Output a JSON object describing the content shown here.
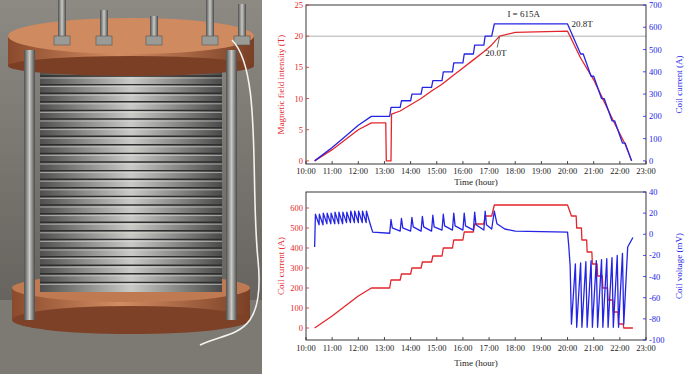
{
  "chart_data": [
    {
      "type": "line",
      "xlabel": "Time (hour)",
      "ylabel": "Magnetic field intensity (T)",
      "y2label": "Coil current (A)",
      "xlim": [
        10,
        23
      ],
      "xticks": [
        {
          "value": 10,
          "label": "10:00"
        },
        {
          "value": 11,
          "label": "11:00"
        },
        {
          "value": 12,
          "label": "12:00"
        },
        {
          "value": 13,
          "label": "13:00"
        },
        {
          "value": 14,
          "label": "14:00"
        },
        {
          "value": 15,
          "label": "15:00"
        },
        {
          "value": 16,
          "label": "16:00"
        },
        {
          "value": 17,
          "label": "17:00"
        },
        {
          "value": 18,
          "label": "18:00"
        },
        {
          "value": 19,
          "label": "19:00"
        },
        {
          "value": 20,
          "label": "20:00"
        },
        {
          "value": 21,
          "label": "21:00"
        },
        {
          "value": 22,
          "label": "22:00"
        },
        {
          "value": 23,
          "label": "23:00"
        }
      ],
      "ylim": [
        -0.5,
        25
      ],
      "yticks": [
        0,
        5,
        10,
        15,
        20,
        25
      ],
      "y2lim": [
        -14,
        700
      ],
      "y2ticks": [
        0,
        100,
        200,
        300,
        400,
        500,
        600,
        700
      ],
      "grid": false,
      "reference_lines": [
        {
          "y": 20
        }
      ],
      "annotations": [
        {
          "text": "I = 615A",
          "x": 17.7,
          "y": 23.0
        },
        {
          "text": "20.8T",
          "x": 20.15,
          "y": 21.4
        },
        {
          "text": "20.0T",
          "x": 16.85,
          "y": 16.9,
          "arrow_to": [
            17.4,
            19.9
          ]
        }
      ],
      "series": [
        {
          "color": "#e3262c",
          "x": [
            10.33,
            11,
            11.5,
            12,
            12.5,
            13.05,
            13.07,
            13.25,
            13.27,
            13.6,
            14,
            14.4,
            14.8,
            15.2,
            15.6,
            16,
            16.4,
            16.8,
            17.1,
            17.4,
            18,
            20,
            20.5,
            21,
            21.4,
            21.8,
            22.2,
            22.45
          ],
          "values": [
            0,
            1.8,
            3.4,
            5,
            6.1,
            6.1,
            0,
            0,
            7.5,
            8,
            9,
            10,
            11.2,
            12.3,
            13.6,
            14.9,
            16.2,
            17.5,
            18.6,
            20.0,
            20.6,
            20.8,
            16.5,
            13,
            9.5,
            6,
            2.7,
            0
          ]
        },
        {
          "color": "#2424e4",
          "axis": "y2",
          "x": [
            10.33,
            11,
            11.5,
            12,
            12.5,
            13.2,
            13.25,
            13.6,
            13.65,
            14.0,
            14.05,
            14.4,
            14.45,
            14.8,
            14.85,
            15.2,
            15.25,
            15.6,
            15.65,
            16.0,
            16.05,
            16.4,
            16.45,
            16.8,
            16.85,
            17.1,
            17.2,
            20.0,
            20.5,
            20.6,
            20.9,
            21.0,
            21.3,
            21.4,
            21.7,
            21.8,
            22.1,
            22.2,
            22.45
          ],
          "values": [
            0,
            60,
            110,
            160,
            200,
            200,
            240,
            240,
            270,
            270,
            300,
            300,
            330,
            330,
            360,
            360,
            400,
            400,
            440,
            440,
            480,
            480,
            520,
            520,
            560,
            560,
            615,
            615,
            480,
            480,
            380,
            380,
            280,
            280,
            180,
            180,
            80,
            80,
            0
          ]
        }
      ]
    },
    {
      "type": "line",
      "xlabel": "Time (hour)",
      "ylabel": "Coil current (A)",
      "y2label": "Coil voltage (mV)",
      "xlim": [
        10,
        23
      ],
      "xticks": [
        {
          "value": 10,
          "label": "10:00"
        },
        {
          "value": 11,
          "label": "11:00"
        },
        {
          "value": 12,
          "label": "12:00"
        },
        {
          "value": 13,
          "label": "13:00"
        },
        {
          "value": 14,
          "label": "14:00"
        },
        {
          "value": 15,
          "label": "15:00"
        },
        {
          "value": 16,
          "label": "16:00"
        },
        {
          "value": 17,
          "label": "17:00"
        },
        {
          "value": 18,
          "label": "18:00"
        },
        {
          "value": 19,
          "label": "19:00"
        },
        {
          "value": 20,
          "label": "20:00"
        },
        {
          "value": 21,
          "label": "21:00"
        },
        {
          "value": 22,
          "label": "22:00"
        },
        {
          "value": 23,
          "label": "23:00"
        }
      ],
      "ylim": [
        -60,
        680
      ],
      "yticks": [
        0,
        100,
        200,
        300,
        400,
        500,
        600
      ],
      "y2lim": [
        -100,
        40
      ],
      "y2ticks": [
        -100,
        -80,
        -60,
        -40,
        -20,
        0,
        20,
        40
      ],
      "grid": false,
      "series": [
        {
          "color": "#e3262c",
          "x": [
            10.33,
            11,
            11.5,
            12,
            12.5,
            13.2,
            13.25,
            13.6,
            13.65,
            14.0,
            14.05,
            14.4,
            14.45,
            14.8,
            14.85,
            15.2,
            15.25,
            15.6,
            15.65,
            16.0,
            16.05,
            16.4,
            16.45,
            16.8,
            16.85,
            17.1,
            17.2,
            20.0,
            20.15,
            20.33,
            20.35,
            20.53,
            20.55,
            20.73,
            20.75,
            20.93,
            20.95,
            21.13,
            21.15,
            21.33,
            21.35,
            21.53,
            21.55,
            21.73,
            21.75,
            21.93,
            21.95,
            22.13,
            22.15,
            22.5
          ],
          "values": [
            0,
            60,
            110,
            160,
            200,
            200,
            240,
            240,
            270,
            270,
            300,
            300,
            330,
            330,
            360,
            360,
            400,
            400,
            440,
            440,
            480,
            480,
            520,
            520,
            560,
            560,
            615,
            615,
            560,
            560,
            500,
            500,
            440,
            440,
            380,
            380,
            320,
            320,
            260,
            260,
            200,
            200,
            140,
            140,
            80,
            80,
            20,
            20,
            0,
            0
          ]
        },
        {
          "color": "#2424e4",
          "axis": "y2",
          "x": [
            10.33,
            10.36,
            10.5,
            10.51,
            10.65,
            10.66,
            10.8,
            10.81,
            10.95,
            10.96,
            11.1,
            11.11,
            11.25,
            11.26,
            11.4,
            11.41,
            11.55,
            11.56,
            11.7,
            11.71,
            11.85,
            11.86,
            12.0,
            12.01,
            12.15,
            12.16,
            12.3,
            12.31,
            12.45,
            12.55,
            13.2,
            13.25,
            13.3,
            13.6,
            13.65,
            13.7,
            14.0,
            14.05,
            14.1,
            14.4,
            14.45,
            14.5,
            14.8,
            14.85,
            14.9,
            15.2,
            15.25,
            15.3,
            15.6,
            15.65,
            15.7,
            16.0,
            16.05,
            16.1,
            16.4,
            16.45,
            16.5,
            16.8,
            16.85,
            16.9,
            17.1,
            17.2,
            17.3,
            17.6,
            18,
            20.0,
            20.05,
            20.1,
            20.15,
            20.3,
            20.35,
            20.5,
            20.55,
            20.7,
            20.75,
            20.9,
            20.95,
            21.1,
            21.15,
            21.3,
            21.35,
            21.5,
            21.55,
            21.7,
            21.75,
            21.9,
            21.95,
            22.1,
            22.15,
            22.3,
            22.5
          ],
          "values": [
            -12,
            19,
            9,
            19,
            9,
            20,
            10,
            20,
            10,
            20,
            10,
            21,
            10,
            21,
            10,
            21,
            11,
            21,
            11,
            22,
            11,
            22,
            11,
            22,
            11,
            22,
            11,
            22,
            10,
            2,
            1,
            14,
            6,
            3,
            15,
            6,
            3,
            16,
            7,
            3,
            17,
            7,
            3,
            18,
            7,
            4,
            19,
            8,
            4,
            20,
            8,
            4,
            20,
            8,
            4,
            21,
            9,
            4,
            22,
            9,
            5,
            22,
            10,
            5,
            3,
            2,
            -12,
            -30,
            -85,
            -28,
            -88,
            -27,
            -88,
            -26,
            -88,
            -25,
            -88,
            -25,
            -88,
            -24,
            -88,
            -23,
            -88,
            -22,
            -88,
            -20,
            -88,
            -18,
            -85,
            -12,
            -3
          ]
        }
      ]
    }
  ]
}
